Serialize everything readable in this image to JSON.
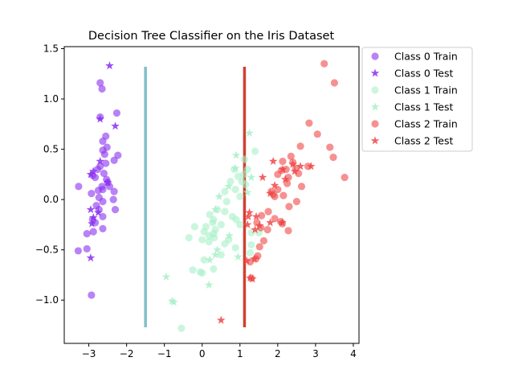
{
  "chart_data": {
    "type": "scatter",
    "title": "Decision Tree Classifier on the Iris Dataset",
    "xlabel": "",
    "ylabel": "",
    "xlim": [
      -3.65,
      4.15
    ],
    "ylim": [
      -1.43,
      1.52
    ],
    "xticks": [
      -3,
      -2,
      -1,
      0,
      1,
      2,
      3,
      4
    ],
    "yticks": [
      -1.0,
      -0.5,
      0.0,
      0.5,
      1.0,
      1.5
    ],
    "xtick_labels": [
      "−3",
      "−2",
      "−1",
      "0",
      "1",
      "2",
      "3",
      "4"
    ],
    "ytick_labels": [
      "−1.0",
      "−0.5",
      "0.0",
      "0.5",
      "1.0",
      "1.5"
    ],
    "grid": false,
    "legend_position": "outside-top-right",
    "decision_boundaries": [
      {
        "x": -1.5,
        "y_range": [
          -1.27,
          1.32
        ],
        "color": "#80bfc8"
      },
      {
        "x": 1.12,
        "y_range": [
          -1.27,
          1.32
        ],
        "color": "#d04030"
      }
    ],
    "series": [
      {
        "name": "Class 0 Train",
        "marker": "circle",
        "color": "#8b2ff0",
        "points": [
          [
            -2.7,
            1.16
          ],
          [
            -2.65,
            1.1
          ],
          [
            -2.7,
            0.82
          ],
          [
            -2.26,
            0.86
          ],
          [
            -2.55,
            0.63
          ],
          [
            -2.63,
            0.58
          ],
          [
            -2.52,
            0.52
          ],
          [
            -2.63,
            0.49
          ],
          [
            -2.58,
            0.45
          ],
          [
            -2.23,
            0.44
          ],
          [
            -2.55,
            0.36
          ],
          [
            -2.33,
            0.39
          ],
          [
            -2.7,
            0.33
          ],
          [
            -2.77,
            0.3
          ],
          [
            -2.9,
            0.24
          ],
          [
            -2.83,
            0.22
          ],
          [
            -2.6,
            0.26
          ],
          [
            -2.53,
            0.2
          ],
          [
            -2.5,
            0.17
          ],
          [
            -2.45,
            0.13
          ],
          [
            -2.65,
            0.13
          ],
          [
            -3.27,
            0.13
          ],
          [
            -2.75,
            0.09
          ],
          [
            -2.63,
            0.1
          ],
          [
            -2.93,
            0.06
          ],
          [
            -2.33,
            0.08
          ],
          [
            -2.73,
            0.02
          ],
          [
            -2.63,
            -0.02
          ],
          [
            -2.35,
            0.0
          ],
          [
            -2.8,
            -0.06
          ],
          [
            -2.3,
            -0.1
          ],
          [
            -2.73,
            -0.1
          ],
          [
            -2.63,
            -0.17
          ],
          [
            -2.9,
            -0.2
          ],
          [
            -2.83,
            -0.23
          ],
          [
            -2.63,
            -0.29
          ],
          [
            -3.05,
            -0.34
          ],
          [
            -2.88,
            -0.32
          ],
          [
            -3.05,
            -0.49
          ],
          [
            -3.28,
            -0.51
          ],
          [
            -2.93,
            -0.95
          ]
        ]
      },
      {
        "name": "Class 0 Test",
        "marker": "star",
        "color": "#8b2ff0",
        "points": [
          [
            -2.45,
            1.33
          ],
          [
            -2.7,
            0.8
          ],
          [
            -2.3,
            0.73
          ],
          [
            -2.7,
            0.38
          ],
          [
            -2.88,
            0.28
          ],
          [
            -2.95,
            0.25
          ],
          [
            -2.5,
            0.17
          ],
          [
            -2.75,
            -0.13
          ],
          [
            -2.95,
            -0.1
          ],
          [
            -2.88,
            -0.18
          ],
          [
            -2.92,
            -0.24
          ],
          [
            -2.95,
            -0.58
          ]
        ]
      },
      {
        "name": "Class 1 Train",
        "marker": "circle",
        "color": "#a9f0c8",
        "points": [
          [
            1.4,
            0.48
          ],
          [
            1.12,
            0.4
          ],
          [
            1.2,
            0.3
          ],
          [
            1.1,
            0.25
          ],
          [
            0.85,
            0.3
          ],
          [
            0.95,
            0.23
          ],
          [
            1.05,
            0.18
          ],
          [
            0.75,
            0.18
          ],
          [
            1.15,
            0.15
          ],
          [
            0.6,
            0.08
          ],
          [
            0.88,
            0.1
          ],
          [
            1.0,
            0.03
          ],
          [
            0.65,
            -0.02
          ],
          [
            0.4,
            -0.1
          ],
          [
            0.6,
            -0.12
          ],
          [
            0.8,
            -0.17
          ],
          [
            0.2,
            -0.15
          ],
          [
            0.3,
            -0.2
          ],
          [
            0.9,
            -0.2
          ],
          [
            1.0,
            -0.25
          ],
          [
            0.28,
            -0.23
          ],
          [
            0.5,
            -0.25
          ],
          [
            0.1,
            -0.27
          ],
          [
            -0.2,
            -0.27
          ],
          [
            0.35,
            -0.3
          ],
          [
            0.3,
            -0.34
          ],
          [
            0.05,
            -0.32
          ],
          [
            0.18,
            -0.36
          ],
          [
            0.0,
            -0.4
          ],
          [
            0.7,
            -0.4
          ],
          [
            0.6,
            -0.44
          ],
          [
            0.32,
            -0.38
          ],
          [
            0.18,
            -0.42
          ],
          [
            -0.35,
            -0.38
          ],
          [
            1.3,
            -0.33
          ],
          [
            0.88,
            -0.48
          ],
          [
            0.5,
            -0.55
          ],
          [
            1.3,
            -0.45
          ],
          [
            0.05,
            -0.6
          ],
          [
            -0.25,
            -0.7
          ],
          [
            0.0,
            -0.73
          ],
          [
            -0.05,
            -0.72
          ],
          [
            0.3,
            -0.69
          ],
          [
            1.5,
            -0.33
          ],
          [
            1.27,
            -0.53
          ],
          [
            -0.55,
            -1.28
          ]
        ]
      },
      {
        "name": "Class 1 Test",
        "marker": "star",
        "color": "#a9f0c8",
        "points": [
          [
            1.25,
            0.66
          ],
          [
            0.9,
            0.44
          ],
          [
            0.88,
            0.31
          ],
          [
            1.3,
            0.22
          ],
          [
            0.7,
            0.13
          ],
          [
            1.2,
            0.07
          ],
          [
            0.45,
            0.03
          ],
          [
            0.35,
            -0.1
          ],
          [
            0.72,
            -0.36
          ],
          [
            0.4,
            -0.5
          ],
          [
            0.35,
            -0.55
          ],
          [
            0.95,
            -0.57
          ],
          [
            0.2,
            -0.6
          ],
          [
            -0.95,
            -0.77
          ],
          [
            0.18,
            -0.85
          ],
          [
            -0.8,
            -1.01
          ],
          [
            -0.75,
            -1.02
          ]
        ]
      },
      {
        "name": "Class 2 Train",
        "marker": "circle",
        "color": "#f04848",
        "points": [
          [
            3.23,
            1.35
          ],
          [
            3.5,
            1.16
          ],
          [
            2.83,
            0.76
          ],
          [
            3.05,
            0.65
          ],
          [
            2.6,
            0.53
          ],
          [
            3.38,
            0.52
          ],
          [
            2.35,
            0.43
          ],
          [
            3.47,
            0.42
          ],
          [
            2.13,
            0.38
          ],
          [
            2.4,
            0.37
          ],
          [
            2.8,
            0.33
          ],
          [
            2.48,
            0.31
          ],
          [
            2.22,
            0.3
          ],
          [
            3.77,
            0.22
          ],
          [
            2.1,
            0.29
          ],
          [
            2.55,
            0.26
          ],
          [
            2.0,
            0.25
          ],
          [
            2.28,
            0.22
          ],
          [
            2.25,
            0.16
          ],
          [
            2.63,
            0.13
          ],
          [
            2.0,
            0.1
          ],
          [
            1.83,
            0.08
          ],
          [
            1.88,
            0.05
          ],
          [
            1.92,
            0.03
          ],
          [
            2.15,
            0.04
          ],
          [
            2.5,
            -0.02
          ],
          [
            2.3,
            -0.07
          ],
          [
            1.75,
            -0.12
          ],
          [
            1.57,
            -0.16
          ],
          [
            1.92,
            -0.19
          ],
          [
            2.08,
            -0.22
          ],
          [
            1.45,
            -0.23
          ],
          [
            2.12,
            -0.24
          ],
          [
            1.55,
            -0.28
          ],
          [
            1.73,
            -0.3
          ],
          [
            2.28,
            -0.31
          ],
          [
            1.63,
            -0.41
          ],
          [
            1.52,
            -0.47
          ],
          [
            1.47,
            -0.56
          ],
          [
            1.42,
            -0.59
          ],
          [
            1.27,
            -0.62
          ],
          [
            1.3,
            -0.78
          ]
        ]
      },
      {
        "name": "Class 2 Test",
        "marker": "star",
        "color": "#f04848",
        "points": [
          [
            1.88,
            0.38
          ],
          [
            2.4,
            0.35
          ],
          [
            2.6,
            0.33
          ],
          [
            2.88,
            0.33
          ],
          [
            2.13,
            0.3
          ],
          [
            2.45,
            0.28
          ],
          [
            1.6,
            0.22
          ],
          [
            2.2,
            0.2
          ],
          [
            1.92,
            0.14
          ],
          [
            1.8,
            0.06
          ],
          [
            1.25,
            -0.13
          ],
          [
            1.22,
            -0.17
          ],
          [
            1.43,
            -0.17
          ],
          [
            2.12,
            -0.23
          ],
          [
            1.8,
            -0.23
          ],
          [
            1.52,
            -0.26
          ],
          [
            1.2,
            -0.25
          ],
          [
            1.4,
            -0.3
          ],
          [
            1.38,
            -0.59
          ],
          [
            1.18,
            -0.61
          ],
          [
            1.27,
            -0.78
          ],
          [
            1.33,
            -0.79
          ],
          [
            0.5,
            -1.2
          ]
        ]
      }
    ]
  }
}
